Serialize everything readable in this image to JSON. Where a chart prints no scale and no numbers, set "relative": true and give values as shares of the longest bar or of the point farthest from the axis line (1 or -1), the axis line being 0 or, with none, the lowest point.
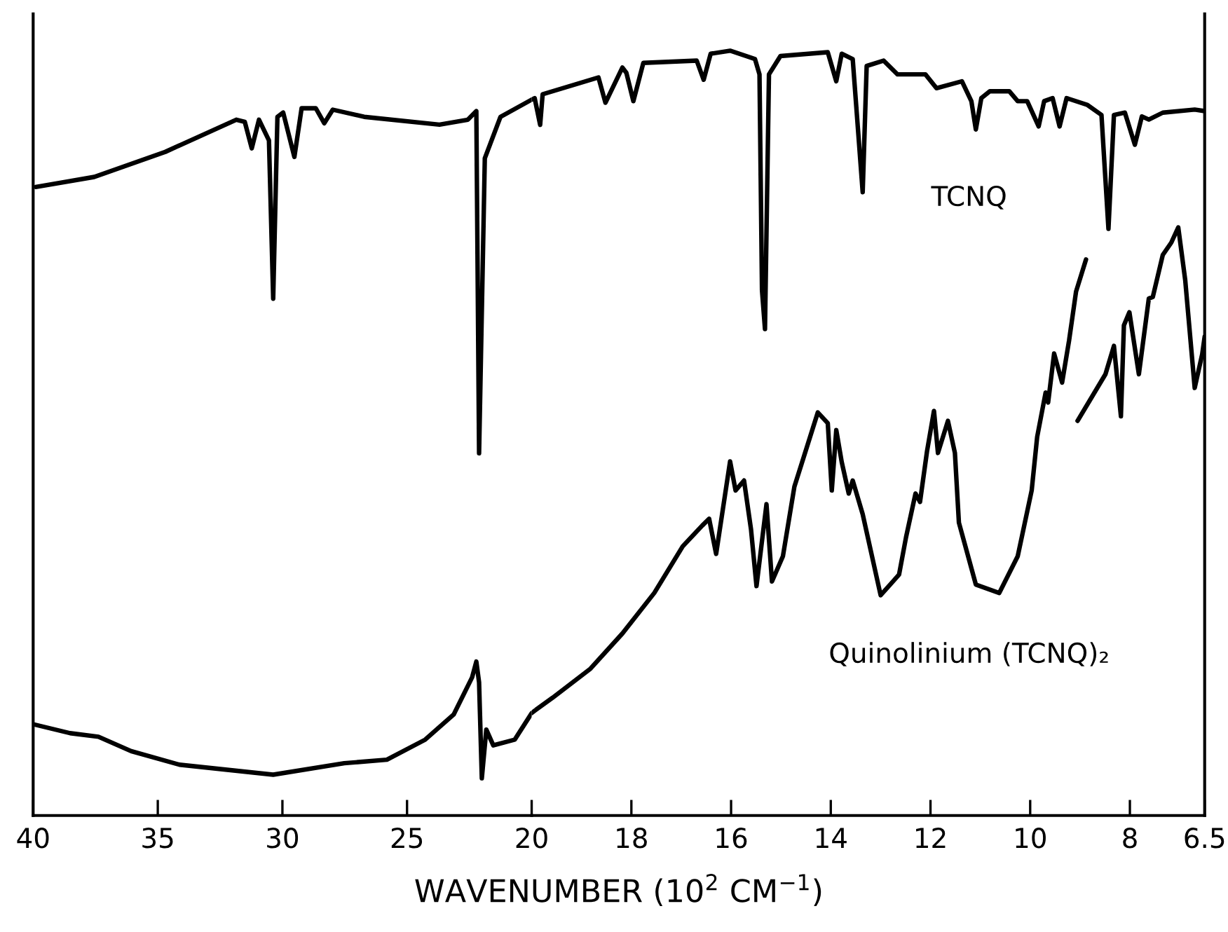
{
  "chart_data": [
    {
      "type": "line",
      "relative": true,
      "xlabel": "WAVENUMBER (10$^{2}$ CM$^{−1}$)",
      "xlim": [
        40,
        20
      ],
      "xticks": [
        40,
        35,
        30,
        25
      ],
      "grid": false,
      "legend": false,
      "marker": "none",
      "line_style": "solid",
      "series": [
        {
          "color": "#000000",
          "x": [
            39.9,
            37.55,
            34.7,
            31.85,
            31.51,
            31.23,
            30.94,
            30.54,
            30.37,
            30.2,
            29.97,
            29.52,
            29.23,
            28.66,
            28.32,
            27.98,
            26.72,
            23.7,
            22.56,
            22.22,
            22.11,
            21.88,
            21.25,
            20
          ],
          "values": [
            0.878,
            0.892,
            0.927,
            0.972,
            0.969,
            0.932,
            0.972,
            0.943,
            0.722,
            0.976,
            0.982,
            0.92,
            0.988,
            0.988,
            0.967,
            0.986,
            0.976,
            0.965,
            0.972,
            0.984,
            0.506,
            0.918,
            0.976,
            1.0
          ]
        },
        {
          "color": "#000000",
          "x": [
            39.94,
            38.52,
            37.38,
            36.07,
            34.13,
            30.37,
            27.52,
            25.81,
            24.27,
            23.13,
            22.39,
            22.22,
            22.11,
            22.0,
            21.82,
            21.54,
            20.68,
            20
          ],
          "values": [
            0.127,
            0.115,
            0.11,
            0.09,
            0.071,
            0.057,
            0.073,
            0.078,
            0.106,
            0.141,
            0.193,
            0.215,
            0.186,
            0.052,
            0.12,
            0.098,
            0.106,
            0.143
          ]
        }
      ]
    },
    {
      "type": "line",
      "relative": true,
      "xlim": [
        20,
        6.5
      ],
      "xticks": [
        20,
        18,
        16,
        14,
        12,
        10,
        8,
        6.5
      ],
      "grid": false,
      "legend": false,
      "marker": "none",
      "line_style": "solid",
      "series": [
        {
          "name": "TCNQ",
          "color": "#000000",
          "x": [
            20,
            19.94,
            19.83,
            19.78,
            18.66,
            18.52,
            18.18,
            18.1,
            17.96,
            17.76,
            16.69,
            16.55,
            16.41,
            16.02,
            15.52,
            15.43,
            15.38,
            15.32,
            15.24,
            15.01,
            14.06,
            13.89,
            13.78,
            13.56,
            13.36,
            13.28,
            12.94,
            12.66,
            12.1,
            11.88,
            11.37,
            11.18,
            11.09,
            10.98,
            10.81,
            10.42,
            10.25,
            10.06,
            9.83,
            9.72,
            9.55,
            9.41,
            9.27,
            8.85,
            8.57,
            8.43,
            8.32,
            8.1,
            7.9,
            7.76,
            7.62,
            7.34,
            6.7,
            6.5
          ],
          "values": [
            0.936,
            0.938,
            0.903,
            0.943,
            0.965,
            0.932,
            0.978,
            0.971,
            0.934,
            0.984,
            0.987,
            0.962,
            0.996,
            1.0,
            0.989,
            0.969,
            0.687,
            0.636,
            0.969,
            0.993,
            0.998,
            0.96,
            0.996,
            0.989,
            0.815,
            0.98,
            0.987,
            0.969,
            0.969,
            0.951,
            0.96,
            0.934,
            0.897,
            0.938,
            0.947,
            0.947,
            0.934,
            0.934,
            0.901,
            0.934,
            0.938,
            0.901,
            0.938,
            0.929,
            0.916,
            0.767,
            0.916,
            0.919,
            0.877,
            0.914,
            0.91,
            0.919,
            0.923,
            0.921
          ]
        },
        {
          "name": "Quinolinium (TCNQ)₂",
          "color": "#000000",
          "x": [
            20,
            19.94,
            19.58,
            18.82,
            18.18,
            17.54,
            16.97,
            16.58,
            16.44,
            16.3,
            16.02,
            15.91,
            15.74,
            15.6,
            15.49,
            15.29,
            15.18,
            14.96,
            14.73,
            14.26,
            14.06,
            13.98,
            13.89,
            13.78,
            13.64,
            13.56,
            13.36,
            13.0,
            12.63,
            12.49,
            12.3,
            12.21,
            12.07,
            11.93,
            11.85,
            11.65,
            11.51,
            11.43,
            11.09,
            10.62,
            10.25,
            9.97,
            9.86,
            9.69,
            9.64,
            9.52,
            9.36,
            9.22,
            9.08,
            8.88,
            8.95,
            9.05,
            8.49,
            8.32,
            8.18,
            8.12,
            8.01,
            7.82,
            7.62,
            7.54,
            7.34,
            7.17,
            7.03,
            6.89,
            6.7,
            6.55,
            6.5
          ],
          "values": [
            0.134,
            0.137,
            0.154,
            0.192,
            0.238,
            0.291,
            0.352,
            0.379,
            0.388,
            0.342,
            0.463,
            0.425,
            0.438,
            0.374,
            0.3,
            0.407,
            0.306,
            0.339,
            0.43,
            0.527,
            0.513,
            0.425,
            0.504,
            0.462,
            0.421,
            0.438,
            0.394,
            0.288,
            0.315,
            0.364,
            0.421,
            0.41,
            0.476,
            0.529,
            0.474,
            0.516,
            0.474,
            0.383,
            0.302,
            0.291,
            0.339,
            0.425,
            0.495,
            0.553,
            0.54,
            0.604,
            0.566,
            0.621,
            0.685,
            0.727,
            null,
            0.516,
            0.577,
            0.614,
            0.522,
            0.641,
            0.658,
            0.577,
            0.676,
            0.678,
            0.733,
            0.749,
            0.769,
            0.7,
            0.559,
            0.603,
            0.626
          ]
        }
      ]
    }
  ]
}
